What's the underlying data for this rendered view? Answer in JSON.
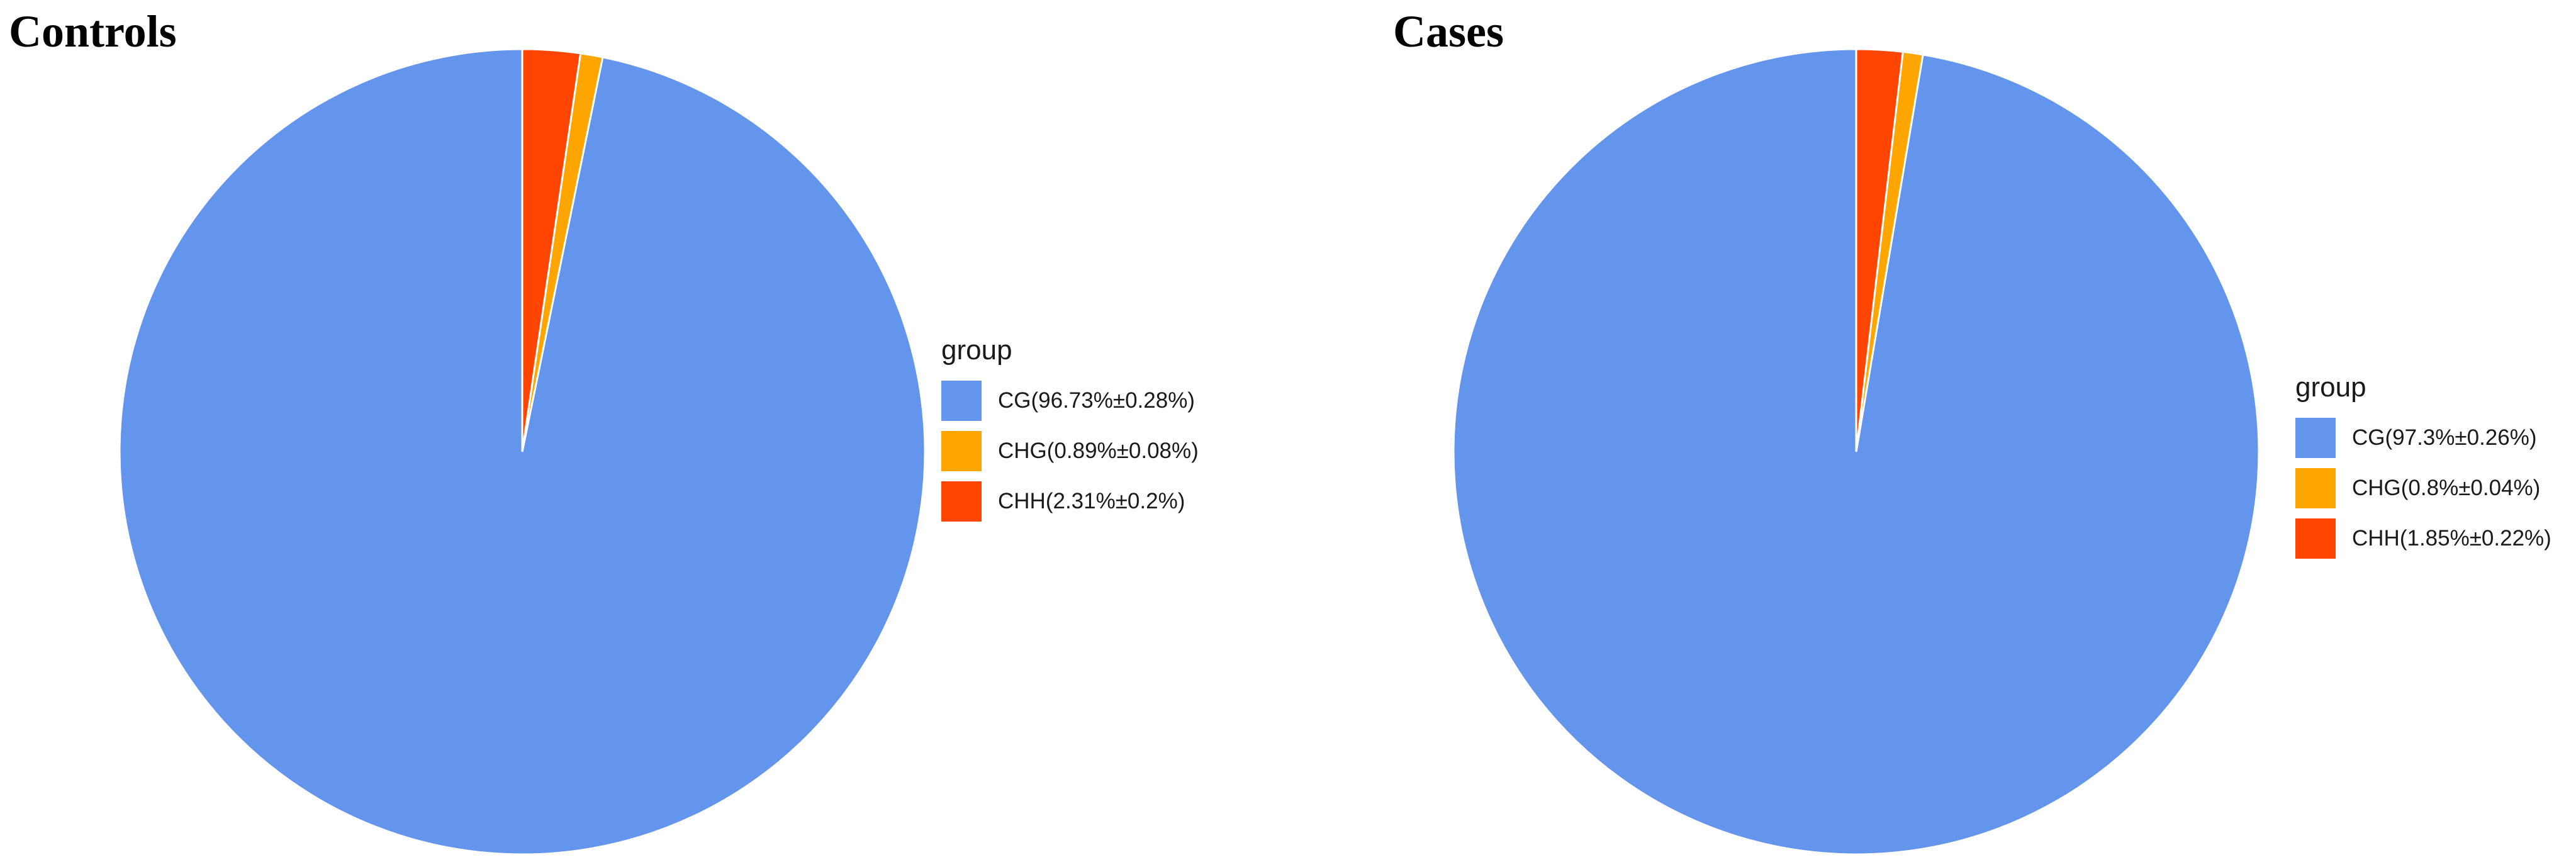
{
  "chart_data": [
    {
      "type": "pie",
      "title": "Controls",
      "legend_title": "group",
      "legend_position": "right",
      "start_angle": "12 o'clock",
      "direction": "counterclockwise",
      "slices": [
        {
          "label": "CG(96.73%±0.28%)",
          "category": "CG",
          "value": 96.73,
          "sd": 0.28,
          "color": "#6495ED"
        },
        {
          "label": "CHG(0.89%±0.08%)",
          "category": "CHG",
          "value": 0.89,
          "sd": 0.08,
          "color": "#FFA500"
        },
        {
          "label": "CHH(2.31%±0.2%)",
          "category": "CHH",
          "value": 2.31,
          "sd": 0.2,
          "color": "#FF4500"
        }
      ]
    },
    {
      "type": "pie",
      "title": "Cases",
      "legend_title": "group",
      "legend_position": "right",
      "start_angle": "12 o'clock",
      "direction": "counterclockwise",
      "slices": [
        {
          "label": "CG(97.3%±0.26%)",
          "category": "CG",
          "value": 97.3,
          "sd": 0.26,
          "color": "#6495ED"
        },
        {
          "label": "CHG(0.8%±0.04%)",
          "category": "CHG",
          "value": 0.8,
          "sd": 0.04,
          "color": "#FFA500"
        },
        {
          "label": "CHH(1.85%±0.22%)",
          "category": "CHH",
          "value": 1.85,
          "sd": 0.22,
          "color": "#FF4500"
        }
      ]
    }
  ]
}
